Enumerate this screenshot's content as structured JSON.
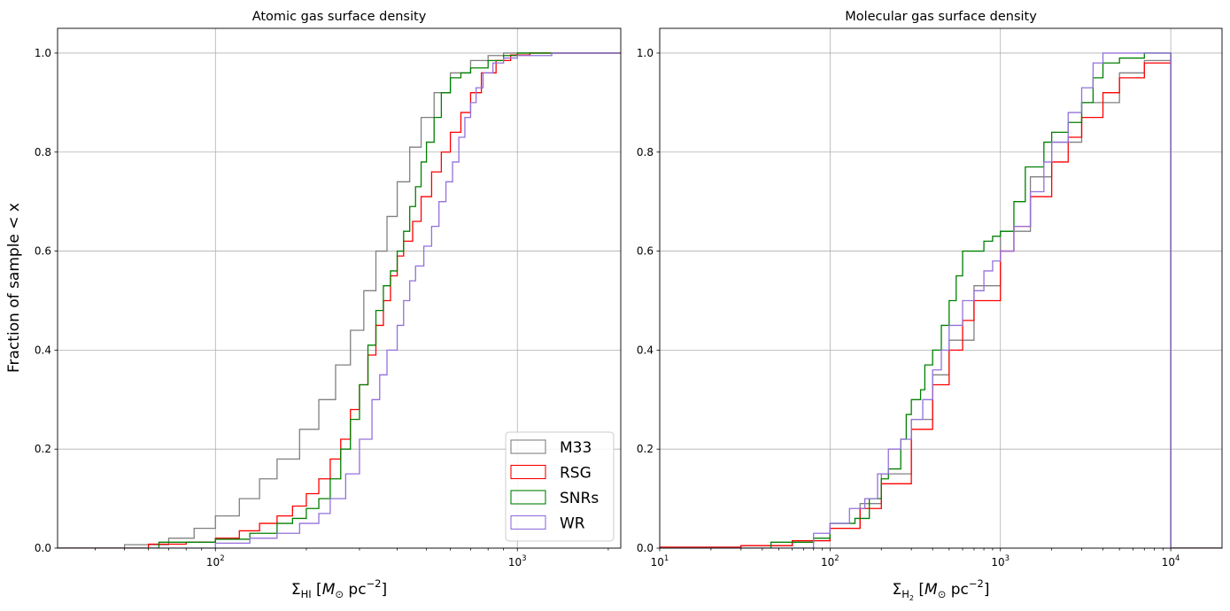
{
  "chart_data": [
    {
      "type": "line",
      "subtype": "step-cdf",
      "title": "Atomic gas surface density",
      "xlabel": {
        "base": "Σ",
        "sub": "HI",
        "unit_open": " [",
        "unit_M": "M",
        "unit_sun": "⊙",
        "unit_pc": " pc",
        "unit_exp": "−2",
        "unit_close": "]"
      },
      "ylabel": "Fraction of sample < x",
      "xscale": "log",
      "xlim": [
        30,
        2200
      ],
      "ylim": [
        0,
        1.05
      ],
      "xticks": [
        {
          "value": 100,
          "base": "10",
          "exp": "2"
        },
        {
          "value": 1000,
          "base": "10",
          "exp": "3"
        }
      ],
      "yticks": [
        "0.0",
        "0.2",
        "0.4",
        "0.6",
        "0.8",
        "1.0"
      ],
      "grid": true,
      "legend": {
        "placement": "lower-right",
        "entries": [
          "M33",
          "RSG",
          "SNRs",
          "WR"
        ]
      },
      "series": [
        {
          "name": "M33",
          "color": "#808080",
          "points": [
            [
              30,
              0
            ],
            [
              50,
              0.007
            ],
            [
              70,
              0.02
            ],
            [
              85,
              0.04
            ],
            [
              100,
              0.065
            ],
            [
              120,
              0.1
            ],
            [
              140,
              0.14
            ],
            [
              160,
              0.18
            ],
            [
              190,
              0.24
            ],
            [
              220,
              0.3
            ],
            [
              250,
              0.37
            ],
            [
              280,
              0.44
            ],
            [
              310,
              0.52
            ],
            [
              340,
              0.6
            ],
            [
              370,
              0.67
            ],
            [
              400,
              0.74
            ],
            [
              440,
              0.81
            ],
            [
              480,
              0.87
            ],
            [
              530,
              0.92
            ],
            [
              600,
              0.96
            ],
            [
              700,
              0.985
            ],
            [
              800,
              0.995
            ],
            [
              900,
              1.0
            ],
            [
              2200,
              1.0
            ]
          ]
        },
        {
          "name": "RSG",
          "color": "#ff0000",
          "points": [
            [
              30,
              0
            ],
            [
              60,
              0.008
            ],
            [
              80,
              0.012
            ],
            [
              100,
              0.02
            ],
            [
              120,
              0.035
            ],
            [
              140,
              0.05
            ],
            [
              160,
              0.065
            ],
            [
              180,
              0.085
            ],
            [
              200,
              0.11
            ],
            [
              220,
              0.14
            ],
            [
              240,
              0.18
            ],
            [
              260,
              0.22
            ],
            [
              280,
              0.28
            ],
            [
              300,
              0.33
            ],
            [
              320,
              0.39
            ],
            [
              340,
              0.45
            ],
            [
              360,
              0.5
            ],
            [
              380,
              0.55
            ],
            [
              400,
              0.59
            ],
            [
              420,
              0.62
            ],
            [
              450,
              0.66
            ],
            [
              480,
              0.71
            ],
            [
              520,
              0.76
            ],
            [
              560,
              0.8
            ],
            [
              600,
              0.84
            ],
            [
              650,
              0.88
            ],
            [
              700,
              0.92
            ],
            [
              760,
              0.96
            ],
            [
              850,
              0.985
            ],
            [
              950,
              0.996
            ],
            [
              1100,
              1.0
            ],
            [
              2200,
              1.0
            ]
          ]
        },
        {
          "name": "SNRs",
          "color": "#008000",
          "points": [
            [
              30,
              0
            ],
            [
              65,
              0.012
            ],
            [
              100,
              0.018
            ],
            [
              130,
              0.03
            ],
            [
              160,
              0.05
            ],
            [
              180,
              0.06
            ],
            [
              200,
              0.08
            ],
            [
              220,
              0.1
            ],
            [
              240,
              0.14
            ],
            [
              260,
              0.2
            ],
            [
              280,
              0.26
            ],
            [
              300,
              0.33
            ],
            [
              320,
              0.41
            ],
            [
              340,
              0.48
            ],
            [
              360,
              0.53
            ],
            [
              380,
              0.56
            ],
            [
              400,
              0.6
            ],
            [
              420,
              0.64
            ],
            [
              440,
              0.69
            ],
            [
              460,
              0.73
            ],
            [
              480,
              0.78
            ],
            [
              500,
              0.82
            ],
            [
              530,
              0.87
            ],
            [
              560,
              0.92
            ],
            [
              600,
              0.95
            ],
            [
              650,
              0.96
            ],
            [
              700,
              0.97
            ],
            [
              800,
              0.985
            ],
            [
              900,
              0.995
            ],
            [
              1000,
              1.0
            ],
            [
              2200,
              1.0
            ]
          ]
        },
        {
          "name": "WR",
          "color": "#9370db",
          "points": [
            [
              30,
              0
            ],
            [
              100,
              0.01
            ],
            [
              130,
              0.02
            ],
            [
              160,
              0.03
            ],
            [
              190,
              0.05
            ],
            [
              220,
              0.07
            ],
            [
              240,
              0.1
            ],
            [
              270,
              0.15
            ],
            [
              300,
              0.22
            ],
            [
              330,
              0.3
            ],
            [
              350,
              0.35
            ],
            [
              370,
              0.4
            ],
            [
              400,
              0.45
            ],
            [
              420,
              0.5
            ],
            [
              440,
              0.54
            ],
            [
              460,
              0.57
            ],
            [
              490,
              0.61
            ],
            [
              520,
              0.65
            ],
            [
              550,
              0.7
            ],
            [
              580,
              0.74
            ],
            [
              610,
              0.78
            ],
            [
              640,
              0.83
            ],
            [
              670,
              0.87
            ],
            [
              700,
              0.9
            ],
            [
              730,
              0.93
            ],
            [
              770,
              0.96
            ],
            [
              830,
              0.98
            ],
            [
              900,
              0.99
            ],
            [
              1000,
              0.995
            ],
            [
              1300,
              1.0
            ],
            [
              2200,
              1.0
            ]
          ]
        }
      ]
    },
    {
      "type": "line",
      "subtype": "step-cdf",
      "title": "Molecular gas surface density",
      "xlabel": {
        "base": "Σ",
        "sub": "H",
        "sub2": "2",
        "unit_open": " [",
        "unit_M": "M",
        "unit_sun": "⊙",
        "unit_pc": " pc",
        "unit_exp": "−2",
        "unit_close": "]"
      },
      "xscale": "log",
      "xlim": [
        10,
        20000
      ],
      "ylim": [
        0,
        1.05
      ],
      "xticks": [
        {
          "value": 10,
          "base": "10",
          "exp": "1"
        },
        {
          "value": 100,
          "base": "10",
          "exp": "2"
        },
        {
          "value": 1000,
          "base": "10",
          "exp": "3"
        },
        {
          "value": 10000,
          "base": "10",
          "exp": "4"
        }
      ],
      "yticks": [
        "0.0",
        "0.2",
        "0.4",
        "0.6",
        "0.8",
        "1.0"
      ],
      "grid": true,
      "series": [
        {
          "name": "M33",
          "color": "#808080",
          "points": [
            [
              10,
              0
            ],
            [
              30,
              0.005
            ],
            [
              60,
              0.015
            ],
            [
              100,
              0.04
            ],
            [
              150,
              0.09
            ],
            [
              200,
              0.15
            ],
            [
              300,
              0.26
            ],
            [
              400,
              0.35
            ],
            [
              500,
              0.42
            ],
            [
              700,
              0.53
            ],
            [
              1000,
              0.64
            ],
            [
              1500,
              0.75
            ],
            [
              2000,
              0.82
            ],
            [
              3000,
              0.9
            ],
            [
              5000,
              0.96
            ],
            [
              7000,
              0.985
            ],
            [
              10000,
              1.0
            ],
            [
              10000,
              0
            ],
            [
              20000,
              0
            ]
          ]
        },
        {
          "name": "RSG",
          "color": "#ff0000",
          "points": [
            [
              10,
              0.002
            ],
            [
              30,
              0.005
            ],
            [
              60,
              0.015
            ],
            [
              100,
              0.04
            ],
            [
              150,
              0.08
            ],
            [
              200,
              0.13
            ],
            [
              300,
              0.24
            ],
            [
              400,
              0.33
            ],
            [
              500,
              0.4
            ],
            [
              600,
              0.46
            ],
            [
              700,
              0.5
            ],
            [
              1000,
              0.6
            ],
            [
              1200,
              0.65
            ],
            [
              1500,
              0.71
            ],
            [
              2000,
              0.78
            ],
            [
              2500,
              0.83
            ],
            [
              3000,
              0.87
            ],
            [
              4000,
              0.92
            ],
            [
              5000,
              0.95
            ],
            [
              7000,
              0.98
            ],
            [
              10000,
              1.0
            ],
            [
              10000,
              0
            ],
            [
              20000,
              0
            ]
          ]
        },
        {
          "name": "SNRs",
          "color": "#008000",
          "points": [
            [
              10,
              0
            ],
            [
              45,
              0
            ],
            [
              45,
              0.012
            ],
            [
              80,
              0.02
            ],
            [
              100,
              0.05
            ],
            [
              140,
              0.06
            ],
            [
              170,
              0.1
            ],
            [
              200,
              0.14
            ],
            [
              220,
              0.16
            ],
            [
              260,
              0.22
            ],
            [
              280,
              0.27
            ],
            [
              300,
              0.3
            ],
            [
              340,
              0.32
            ],
            [
              360,
              0.37
            ],
            [
              400,
              0.4
            ],
            [
              450,
              0.45
            ],
            [
              500,
              0.5
            ],
            [
              550,
              0.55
            ],
            [
              600,
              0.6
            ],
            [
              700,
              0.6
            ],
            [
              800,
              0.62
            ],
            [
              900,
              0.63
            ],
            [
              1000,
              0.64
            ],
            [
              1200,
              0.7
            ],
            [
              1400,
              0.77
            ],
            [
              1600,
              0.77
            ],
            [
              1800,
              0.82
            ],
            [
              2000,
              0.84
            ],
            [
              2500,
              0.86
            ],
            [
              3000,
              0.9
            ],
            [
              3500,
              0.95
            ],
            [
              4000,
              0.98
            ],
            [
              5000,
              0.99
            ],
            [
              7000,
              1.0
            ],
            [
              10000,
              1.0
            ],
            [
              10000,
              0
            ],
            [
              20000,
              0
            ]
          ]
        },
        {
          "name": "WR",
          "color": "#9370db",
          "points": [
            [
              10,
              0
            ],
            [
              80,
              0
            ],
            [
              80,
              0.03
            ],
            [
              100,
              0.05
            ],
            [
              130,
              0.08
            ],
            [
              160,
              0.1
            ],
            [
              190,
              0.15
            ],
            [
              220,
              0.2
            ],
            [
              260,
              0.22
            ],
            [
              300,
              0.26
            ],
            [
              350,
              0.3
            ],
            [
              400,
              0.36
            ],
            [
              450,
              0.4
            ],
            [
              500,
              0.45
            ],
            [
              600,
              0.5
            ],
            [
              700,
              0.52
            ],
            [
              800,
              0.56
            ],
            [
              900,
              0.58
            ],
            [
              1000,
              0.6
            ],
            [
              1200,
              0.65
            ],
            [
              1500,
              0.72
            ],
            [
              1800,
              0.78
            ],
            [
              2000,
              0.82
            ],
            [
              2500,
              0.88
            ],
            [
              3000,
              0.93
            ],
            [
              3500,
              0.98
            ],
            [
              4000,
              1.0
            ],
            [
              10000,
              1.0
            ],
            [
              10000,
              0
            ],
            [
              20000,
              0
            ]
          ]
        }
      ]
    }
  ]
}
